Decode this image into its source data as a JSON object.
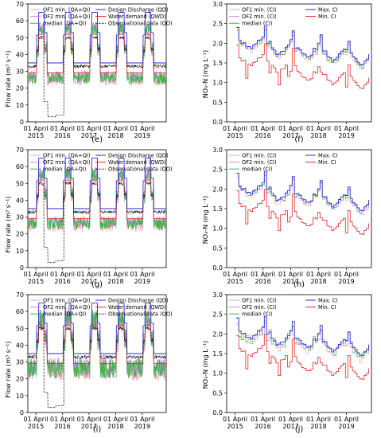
{
  "chart_data": [
    {
      "type": "line",
      "panel": "(e)",
      "ylabel": "Flow rate (m³ s⁻¹)",
      "ylim": [
        0,
        70
      ],
      "yticks": [
        0,
        10,
        20,
        30,
        40,
        50,
        60,
        70
      ],
      "xticks": [
        "01 April 2015",
        "01 April 2016",
        "01 April 2017",
        "01 April 2018",
        "01 April 2019"
      ],
      "legend_rows": [
        [
          "OF1 min. (QA+QI)",
          "Design Discharge (QD)"
        ],
        [
          "OF2 min. (QA+QI)",
          "Water demand (QWD)"
        ],
        [
          "median (QA+QI)",
          "Observational data (QO)"
        ]
      ],
      "series": [
        {
          "name": "OF1 min. (QA+QI)",
          "color": "#f2a2b4",
          "style": "solid"
        },
        {
          "name": "Design Discharge (QD)",
          "color": "#2a2ad6",
          "style": "solid"
        },
        {
          "name": "OF2 min. (QA+QI)",
          "color": "#c98bd8",
          "style": "solid"
        },
        {
          "name": "Water demand (QWD)",
          "color": "#e02828",
          "style": "solid"
        },
        {
          "name": "median (QA+QI)",
          "color": "#3bb54a",
          "style": "solid"
        },
        {
          "name": "Observational data (QO)",
          "color": "#222222",
          "style": "dashed"
        }
      ]
    },
    {
      "type": "line",
      "panel": "(f)",
      "ylabel": "NO₃-N (mg L⁻¹)",
      "ylim": [
        0,
        3.0
      ],
      "yticks": [
        0.0,
        0.5,
        1.0,
        1.5,
        2.0,
        2.5,
        3.0
      ],
      "xticks": [
        "01 April 2015",
        "01 April 2016",
        "01 April 2017",
        "01 April 2018",
        "01 April 2019"
      ],
      "legend_rows": [
        [
          "OF1 min. (CI)",
          "Max. CI"
        ],
        [
          "OF2 min. (CI)",
          "Min. CI"
        ],
        [
          "median (CI)",
          ""
        ]
      ],
      "series": [
        {
          "name": "OF1 min. (CI)",
          "color": "#f2a2b4",
          "style": "solid"
        },
        {
          "name": "Max. CI",
          "color": "#2a2ad6",
          "style": "solid"
        },
        {
          "name": "OF2 min. (CI)",
          "color": "#c98bd8",
          "style": "solid"
        },
        {
          "name": "Min. CI",
          "color": "#e02828",
          "style": "solid"
        },
        {
          "name": "median (CI)",
          "color": "#3bb54a",
          "style": "solid"
        }
      ]
    },
    {
      "type": "line",
      "panel": "(g)",
      "ylabel": "Flow rate (m³ s⁻¹)",
      "ylim": [
        0,
        70
      ],
      "yticks": [
        0,
        10,
        20,
        30,
        40,
        50,
        60,
        70
      ],
      "xticks": [
        "01 April 2015",
        "01 April 2016",
        "01 April 2017",
        "01 April 2018",
        "01 April 2019"
      ],
      "legend_rows": [
        [
          "OF1 min. (QA+QI)",
          "Design Discharge (QD)"
        ],
        [
          "OF2 min. (QA+QI)",
          "Water demand (QWD)"
        ],
        [
          "median (QA+QI)",
          "Observational data (QO)"
        ]
      ],
      "series": [
        {
          "name": "OF1 min. (QA+QI)",
          "color": "#f2a2b4",
          "style": "solid"
        },
        {
          "name": "Design Discharge (QD)",
          "color": "#2a2ad6",
          "style": "solid"
        },
        {
          "name": "OF2 min. (QA+QI)",
          "color": "#c98bd8",
          "style": "solid"
        },
        {
          "name": "Water demand (QWD)",
          "color": "#e02828",
          "style": "solid"
        },
        {
          "name": "median (QA+QI)",
          "color": "#3bb54a",
          "style": "solid"
        },
        {
          "name": "Observational data (QO)",
          "color": "#222222",
          "style": "dashed"
        }
      ]
    },
    {
      "type": "line",
      "panel": "(h)",
      "ylabel": "NO₃-N (mg L⁻¹)",
      "ylim": [
        0,
        3.0
      ],
      "yticks": [
        0.0,
        0.5,
        1.0,
        1.5,
        2.0,
        2.5,
        3.0
      ],
      "xticks": [
        "01 April 2015",
        "01 April 2016",
        "01 April 2017",
        "01 April 2018",
        "01 April 2019"
      ],
      "legend_rows": [
        [
          "OF1 min. (CI)",
          "Max. CI"
        ],
        [
          "OF2 min. (CI)",
          "Min. CI"
        ],
        [
          "median (CI)",
          ""
        ]
      ],
      "series": [
        {
          "name": "OF1 min. (CI)",
          "color": "#f2a2b4",
          "style": "solid"
        },
        {
          "name": "Max. CI",
          "color": "#2a2ad6",
          "style": "solid"
        },
        {
          "name": "OF2 min. (CI)",
          "color": "#c98bd8",
          "style": "solid"
        },
        {
          "name": "Min. CI",
          "color": "#e02828",
          "style": "solid"
        },
        {
          "name": "median (CI)",
          "color": "#3bb54a",
          "style": "solid"
        }
      ]
    },
    {
      "type": "line",
      "panel": "(i)",
      "ylabel": "Flow rate (m³ s⁻¹)",
      "ylim": [
        0,
        70
      ],
      "yticks": [
        0,
        10,
        20,
        30,
        40,
        50,
        60,
        70
      ],
      "xticks": [
        "01 April 2015",
        "01 April 2016",
        "01 April 2017",
        "01 April 2018",
        "01 April 2019"
      ],
      "legend_rows": [
        [
          "OF1 min. (QA+QI)",
          "Design Discharge (QD)"
        ],
        [
          "OF2 min. (QA+QI)",
          "Water demand (QWD)"
        ],
        [
          "median (QA+QI)",
          "Observational data (QO)"
        ]
      ],
      "series": [
        {
          "name": "OF1 min. (QA+QI)",
          "color": "#f2a2b4",
          "style": "solid"
        },
        {
          "name": "Design Discharge (QD)",
          "color": "#2a2ad6",
          "style": "solid"
        },
        {
          "name": "OF2 min. (QA+QI)",
          "color": "#c98bd8",
          "style": "solid"
        },
        {
          "name": "Water demand (QWD)",
          "color": "#e02828",
          "style": "solid"
        },
        {
          "name": "median (QA+QI)",
          "color": "#3bb54a",
          "style": "solid"
        },
        {
          "name": "Observational data (QO)",
          "color": "#222222",
          "style": "dashed"
        }
      ]
    },
    {
      "type": "line",
      "panel": "(j)",
      "ylabel": "NO₃-N (mg L⁻¹)",
      "ylim": [
        0,
        3.0
      ],
      "yticks": [
        0.0,
        0.5,
        1.0,
        1.5,
        2.0,
        2.5,
        3.0
      ],
      "xticks": [
        "01 April 2015",
        "01 April 2016",
        "01 April 2017",
        "01 April 2018",
        "01 April 2019"
      ],
      "legend_rows": [
        [
          "OF1 min. (CI)",
          "Max. CI"
        ],
        [
          "OF2 min. (CI)",
          "Min. CI"
        ],
        [
          "median (CI)",
          ""
        ]
      ],
      "series": [
        {
          "name": "OF1 min. (CI)",
          "color": "#f2a2b4",
          "style": "solid"
        },
        {
          "name": "Max. CI",
          "color": "#2a2ad6",
          "style": "solid"
        },
        {
          "name": "OF2 min. (CI)",
          "color": "#c98bd8",
          "style": "solid"
        },
        {
          "name": "Min. CI",
          "color": "#e02828",
          "style": "solid"
        },
        {
          "name": "median (CI)",
          "color": "#3bb54a",
          "style": "solid"
        }
      ]
    }
  ]
}
